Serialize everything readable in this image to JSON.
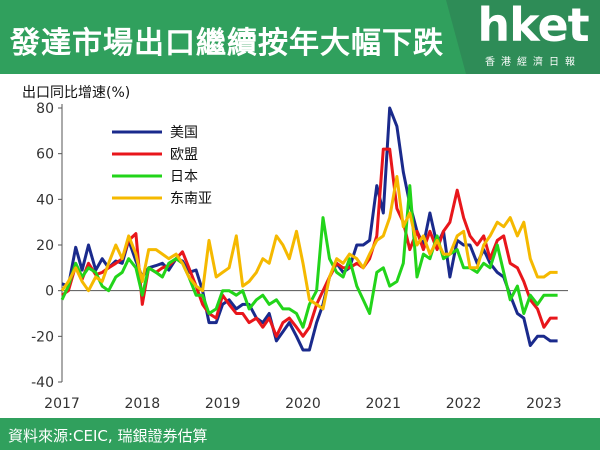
{
  "header": {
    "title": "發達市場出口繼續按年大幅下跌",
    "logo": "hket",
    "logo_sub": "香港經濟日報",
    "bg_color": "#30a05d"
  },
  "footer": {
    "source": "資料來源:CEIC, 瑞銀證券估算"
  },
  "chart_data": {
    "type": "line",
    "title": "",
    "ylabel": "出口同比增速(%)",
    "xlabel": "",
    "ylim": [
      -40,
      80
    ],
    "yticks": [
      -40,
      -20,
      0,
      20,
      40,
      60,
      80
    ],
    "xlim": [
      2017.0,
      2023.3
    ],
    "xticks": [
      2017,
      2018,
      2019,
      2020,
      2021,
      2022,
      2023
    ],
    "legend_position": "top-left",
    "grid": false,
    "series": [
      {
        "name": "美国",
        "color": "#1a2a8c",
        "x": [
          2017.0,
          2017.08,
          2017.17,
          2017.25,
          2017.33,
          2017.42,
          2017.5,
          2017.58,
          2017.67,
          2017.75,
          2017.83,
          2017.92,
          2018.0,
          2018.08,
          2018.17,
          2018.25,
          2018.33,
          2018.42,
          2018.5,
          2018.58,
          2018.67,
          2018.75,
          2018.83,
          2018.92,
          2019.0,
          2019.08,
          2019.17,
          2019.25,
          2019.33,
          2019.42,
          2019.5,
          2019.58,
          2019.67,
          2019.75,
          2019.83,
          2019.92,
          2020.0,
          2020.08,
          2020.17,
          2020.25,
          2020.33,
          2020.42,
          2020.5,
          2020.58,
          2020.67,
          2020.75,
          2020.83,
          2020.92,
          2021.0,
          2021.08,
          2021.17,
          2021.25,
          2021.33,
          2021.42,
          2021.5,
          2021.58,
          2021.67,
          2021.75,
          2021.83,
          2021.92,
          2022.0,
          2022.08,
          2022.17,
          2022.25,
          2022.33,
          2022.42,
          2022.5,
          2022.58,
          2022.67,
          2022.75,
          2022.83,
          2022.92,
          2023.0,
          2023.08,
          2023.17
        ],
        "values": [
          3,
          2,
          19,
          9,
          20,
          9,
          14,
          10,
          13,
          12,
          22,
          13,
          6,
          10,
          11,
          12,
          9,
          14,
          13,
          8,
          9,
          0,
          -14,
          -14,
          -6,
          -4,
          -8,
          -6,
          -6,
          -12,
          -14,
          -10,
          -22,
          -18,
          -14,
          -20,
          -26,
          -26,
          -14,
          -6,
          6,
          12,
          8,
          10,
          20,
          20,
          22,
          46,
          34,
          82,
          72,
          52,
          38,
          26,
          20,
          34,
          20,
          26,
          6,
          22,
          20,
          20,
          12,
          18,
          12,
          8,
          6,
          -2,
          -10,
          -12,
          -24,
          -20,
          -20,
          -22,
          -22
        ]
      },
      {
        "name": "欧盟",
        "color": "#e8161b",
        "x": [
          2017.0,
          2017.08,
          2017.17,
          2017.25,
          2017.33,
          2017.42,
          2017.5,
          2017.58,
          2017.67,
          2017.75,
          2017.83,
          2017.92,
          2018.0,
          2018.08,
          2018.17,
          2018.25,
          2018.33,
          2018.42,
          2018.5,
          2018.58,
          2018.67,
          2018.75,
          2018.83,
          2018.92,
          2019.0,
          2019.08,
          2019.17,
          2019.25,
          2019.33,
          2019.42,
          2019.5,
          2019.58,
          2019.67,
          2019.75,
          2019.83,
          2019.92,
          2020.0,
          2020.08,
          2020.17,
          2020.25,
          2020.33,
          2020.42,
          2020.5,
          2020.58,
          2020.67,
          2020.75,
          2020.83,
          2020.92,
          2021.0,
          2021.08,
          2021.17,
          2021.25,
          2021.33,
          2021.42,
          2021.5,
          2021.58,
          2021.67,
          2021.75,
          2021.83,
          2021.92,
          2022.0,
          2022.08,
          2022.17,
          2022.25,
          2022.33,
          2022.42,
          2022.5,
          2022.58,
          2022.67,
          2022.75,
          2022.83,
          2022.92,
          2023.0,
          2023.08,
          2023.17
        ],
        "values": [
          -2,
          0,
          11,
          5,
          12,
          7,
          8,
          10,
          12,
          14,
          22,
          25,
          -6,
          10,
          8,
          10,
          11,
          14,
          17,
          10,
          2,
          -6,
          -10,
          -12,
          -2,
          -6,
          -10,
          -10,
          -14,
          -12,
          -16,
          -12,
          -20,
          -14,
          -12,
          -16,
          -20,
          -16,
          -6,
          0,
          6,
          12,
          10,
          10,
          12,
          10,
          14,
          24,
          62,
          62,
          36,
          30,
          18,
          26,
          18,
          26,
          18,
          26,
          30,
          44,
          32,
          24,
          20,
          24,
          14,
          22,
          24,
          12,
          10,
          4,
          -4,
          -8,
          -16,
          -12,
          -12
        ]
      },
      {
        "name": "日本",
        "color": "#22d41a",
        "x": [
          2017.0,
          2017.08,
          2017.17,
          2017.25,
          2017.33,
          2017.42,
          2017.5,
          2017.58,
          2017.67,
          2017.75,
          2017.83,
          2017.92,
          2018.0,
          2018.08,
          2018.17,
          2018.25,
          2018.33,
          2018.42,
          2018.5,
          2018.58,
          2018.67,
          2018.75,
          2018.83,
          2018.92,
          2019.0,
          2019.08,
          2019.17,
          2019.25,
          2019.33,
          2019.42,
          2019.5,
          2019.58,
          2019.67,
          2019.75,
          2019.83,
          2019.92,
          2020.0,
          2020.08,
          2020.17,
          2020.25,
          2020.33,
          2020.42,
          2020.5,
          2020.58,
          2020.67,
          2020.75,
          2020.83,
          2020.92,
          2021.0,
          2021.08,
          2021.17,
          2021.25,
          2021.33,
          2021.42,
          2021.5,
          2021.58,
          2021.67,
          2021.75,
          2021.83,
          2021.92,
          2022.0,
          2022.08,
          2022.17,
          2022.25,
          2022.33,
          2022.42,
          2022.5,
          2022.58,
          2022.67,
          2022.75,
          2022.83,
          2022.92,
          2023.0,
          2023.08,
          2023.17
        ],
        "values": [
          -4,
          2,
          12,
          6,
          10,
          8,
          2,
          0,
          6,
          8,
          14,
          10,
          -2,
          10,
          8,
          6,
          12,
          14,
          12,
          6,
          -2,
          -2,
          -10,
          -8,
          0,
          0,
          -2,
          0,
          -8,
          -4,
          -2,
          -6,
          -4,
          -8,
          -8,
          -10,
          -16,
          -6,
          0,
          32,
          14,
          8,
          6,
          14,
          2,
          -4,
          -10,
          8,
          10,
          2,
          4,
          12,
          46,
          6,
          16,
          14,
          24,
          14,
          16,
          18,
          10,
          10,
          8,
          12,
          10,
          20,
          8,
          -4,
          2,
          -10,
          -2,
          -6,
          -2,
          -2,
          -2
        ]
      },
      {
        "name": "东南亚",
        "color": "#f5b900",
        "x": [
          2017.0,
          2017.08,
          2017.17,
          2017.25,
          2017.33,
          2017.42,
          2017.5,
          2017.58,
          2017.67,
          2017.75,
          2017.83,
          2017.92,
          2018.0,
          2018.08,
          2018.17,
          2018.25,
          2018.33,
          2018.42,
          2018.5,
          2018.58,
          2018.67,
          2018.75,
          2018.83,
          2018.92,
          2019.0,
          2019.08,
          2019.17,
          2019.25,
          2019.33,
          2019.42,
          2019.5,
          2019.58,
          2019.67,
          2019.75,
          2019.83,
          2019.92,
          2020.0,
          2020.08,
          2020.17,
          2020.25,
          2020.33,
          2020.42,
          2020.5,
          2020.58,
          2020.67,
          2020.75,
          2020.83,
          2020.92,
          2021.0,
          2021.08,
          2021.17,
          2021.25,
          2021.33,
          2021.42,
          2021.5,
          2021.58,
          2021.67,
          2021.75,
          2021.83,
          2021.92,
          2022.0,
          2022.08,
          2022.17,
          2022.25,
          2022.33,
          2022.42,
          2022.5,
          2022.58,
          2022.67,
          2022.75,
          2022.83,
          2022.92,
          2023.0,
          2023.08,
          2023.17
        ],
        "values": [
          0,
          4,
          10,
          4,
          0,
          6,
          4,
          12,
          20,
          14,
          24,
          16,
          4,
          18,
          18,
          16,
          14,
          16,
          12,
          6,
          2,
          0,
          22,
          6,
          8,
          10,
          24,
          2,
          4,
          8,
          14,
          12,
          24,
          20,
          14,
          26,
          12,
          -4,
          -6,
          -8,
          6,
          14,
          12,
          16,
          14,
          10,
          16,
          22,
          24,
          32,
          50,
          28,
          34,
          20,
          24,
          16,
          22,
          16,
          16,
          24,
          26,
          10,
          10,
          20,
          24,
          30,
          28,
          32,
          24,
          30,
          14,
          6,
          6,
          8,
          8
        ]
      }
    ]
  }
}
